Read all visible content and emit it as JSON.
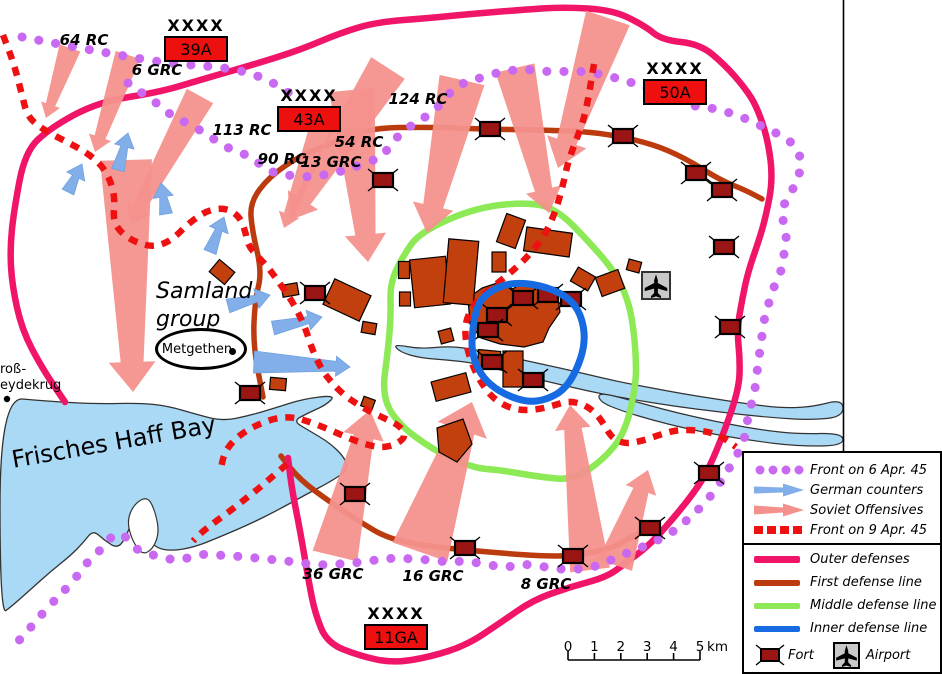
{
  "map_labels": {
    "samland_line1": "Samland",
    "samland_line2": "group",
    "metgethen": "Metgethen",
    "bay_name": "Frisches Haff Bay",
    "town_line1": "roß-",
    "town_line2": "eydekrug"
  },
  "units": {
    "corps": [
      {
        "text": "64 RC"
      },
      {
        "text": "6 GRC"
      },
      {
        "text": "113 RC"
      },
      {
        "text": "90 RC"
      },
      {
        "text": "13 GRC"
      },
      {
        "text": "54 RC"
      },
      {
        "text": "124 RC"
      },
      {
        "text": "36 GRC"
      },
      {
        "text": "16 GRC"
      },
      {
        "text": "8 GRC"
      }
    ],
    "armies": [
      {
        "echelon": "XXXX",
        "name": "39A"
      },
      {
        "echelon": "XXXX",
        "name": "43A"
      },
      {
        "echelon": "XXXX",
        "name": "50A"
      },
      {
        "echelon": "XXXX",
        "name": "11GA"
      }
    ]
  },
  "legend": {
    "items": [
      {
        "symbol": "front6-dots",
        "label": "Front on 6 Apr. 45"
      },
      {
        "symbol": "german-arrow",
        "label": "German counters"
      },
      {
        "symbol": "soviet-arrow",
        "label": "Soviet Offensives"
      },
      {
        "symbol": "front9-dashes",
        "label": "Front on 9 Apr. 45"
      },
      {
        "symbol": "outer-line",
        "label": "Outer defenses"
      },
      {
        "symbol": "first-line",
        "label": "First defense line"
      },
      {
        "symbol": "middle-line",
        "label": "Middle defense line"
      },
      {
        "symbol": "inner-line",
        "label": "Inner defense line"
      }
    ],
    "fort_label": "Fort",
    "airport_label": "Airport"
  },
  "scale_bar": {
    "tick_labels": [
      "0",
      "1",
      "2",
      "3",
      "4",
      "5"
    ],
    "unit_label": "km"
  },
  "colors": {
    "front6": "#C969F1",
    "german": "#82AFE9",
    "soviet": "#F4918D",
    "front9": "#ED1111",
    "outer": "#F01568",
    "first": "#BC3B0E",
    "middle": "#8DE956",
    "inner": "#176BE2",
    "fort": "#9B1515",
    "building": "#C2400E",
    "water": "#A9D9F5",
    "army_box": "#EE0F0F",
    "airport_box": "#C9C9C9"
  }
}
